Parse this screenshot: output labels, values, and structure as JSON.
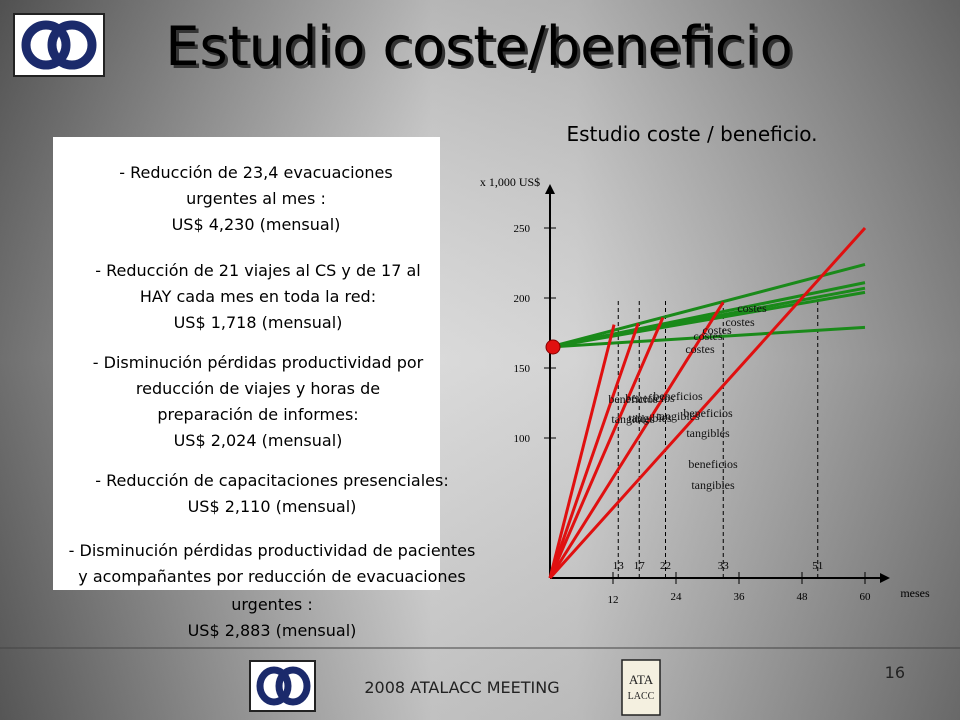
{
  "header": {
    "title": "Estudio coste/beneficio"
  },
  "bullets": [
    [
      "- Reducción de 23,4 evacuaciones",
      "urgentes al mes :",
      "US$ 4,230 (mensual)"
    ],
    [
      "- Reducción de 21 viajes al CS y de 17 al",
      "HAY cada mes en toda la red:",
      "US$ 1,718 (mensual)"
    ],
    [
      "- Disminución pérdidas productividad por",
      "reducción de viajes y horas de",
      "preparación de informes:",
      "US$ 2,024 (mensual)"
    ],
    [
      "- Reducción de capacitaciones presenciales:",
      "US$ 2,110 (mensual)"
    ],
    [
      "- Disminución pérdidas productividad de pacientes",
      "y acompañantes por reducción de evacuaciones",
      "urgentes :",
      "US$ 2,883 (mensual)"
    ]
  ],
  "chart_data": {
    "type": "line",
    "title": "Estudio coste / beneficio.",
    "y_label": "x 1,000 US$",
    "x_label": "meses",
    "xlim": [
      0,
      64
    ],
    "ylim": [
      0,
      280
    ],
    "xticks": [
      12,
      24,
      36,
      48,
      60
    ],
    "yticks": [
      100,
      150,
      200,
      250
    ],
    "break_even": [
      13,
      17,
      22,
      33,
      51
    ],
    "series": [
      {
        "color": "#1a8a1a",
        "x": [
          0,
          60
        ],
        "values": [
          165,
          224
        ]
      },
      {
        "color": "#1a8a1a",
        "x": [
          0,
          60
        ],
        "values": [
          165,
          211
        ]
      },
      {
        "color": "#1a8a1a",
        "x": [
          0,
          60
        ],
        "values": [
          165,
          207
        ]
      },
      {
        "color": "#1a8a1a",
        "x": [
          0,
          60
        ],
        "values": [
          165,
          204
        ]
      },
      {
        "color": "#1a8a1a",
        "x": [
          0,
          60
        ],
        "values": [
          165,
          179
        ]
      },
      {
        "color": "#e01010",
        "x": [
          0,
          12.2
        ],
        "values": [
          0,
          181
        ]
      },
      {
        "color": "#e01010",
        "x": [
          0,
          16.8
        ],
        "values": [
          0,
          182
        ]
      },
      {
        "color": "#e01010",
        "x": [
          0,
          21.5
        ],
        "values": [
          0,
          186
        ]
      },
      {
        "color": "#e01010",
        "x": [
          0,
          33
        ],
        "values": [
          0,
          197
        ]
      },
      {
        "color": "#e01010",
        "x": [
          0,
          60
        ],
        "values": [
          0,
          250
        ]
      }
    ],
    "annotations": [
      "costes",
      "costes",
      "costes",
      "costes",
      "costes",
      "beneficios",
      "tangibles",
      "beneficios",
      "tangibles",
      "beneficios",
      "tangibles",
      "beneficios",
      "tangibles",
      "beneficios",
      "tangibles"
    ]
  },
  "footer": {
    "meeting": "2008 ATALACC MEETING",
    "page": "16",
    "logo_text": [
      "ATA",
      "LACC"
    ]
  }
}
